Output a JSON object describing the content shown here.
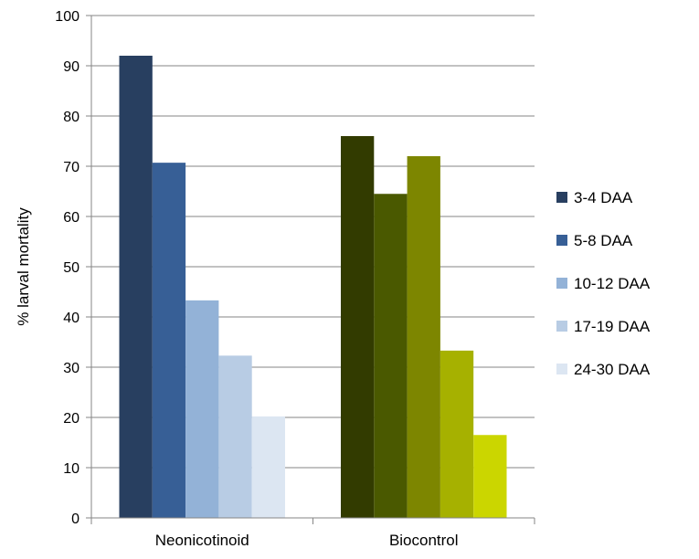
{
  "chart_data": {
    "type": "bar",
    "title": "",
    "xlabel": "",
    "ylabel": "% larval mortality",
    "ylim": [
      0,
      100
    ],
    "yticks": [
      0,
      10,
      20,
      30,
      40,
      50,
      60,
      70,
      80,
      90,
      100
    ],
    "grid": true,
    "legend_position": "right",
    "categories": [
      "Neonicotinoid",
      "Biocontrol"
    ],
    "series": [
      {
        "name": "3-4 DAA",
        "values": [
          92,
          76
        ],
        "colors": [
          "#283f60",
          "#323b00"
        ]
      },
      {
        "name": "5-8 DAA",
        "values": [
          70.7,
          64.5
        ],
        "colors": [
          "#375f96",
          "#4a5900"
        ]
      },
      {
        "name": "10-12 DAA",
        "values": [
          43.3,
          72
        ],
        "colors": [
          "#93b2d7",
          "#7d8600"
        ]
      },
      {
        "name": "17-19 DAA",
        "values": [
          32.3,
          33.3
        ],
        "colors": [
          "#b8cce4",
          "#a6b100"
        ]
      },
      {
        "name": "24-30 DAA",
        "values": [
          20.2,
          16.5
        ],
        "colors": [
          "#dce6f2",
          "#cbd600"
        ]
      }
    ],
    "legend_colors": [
      "#283f60",
      "#375f96",
      "#93b2d7",
      "#b8cce4",
      "#dce6f2"
    ]
  }
}
